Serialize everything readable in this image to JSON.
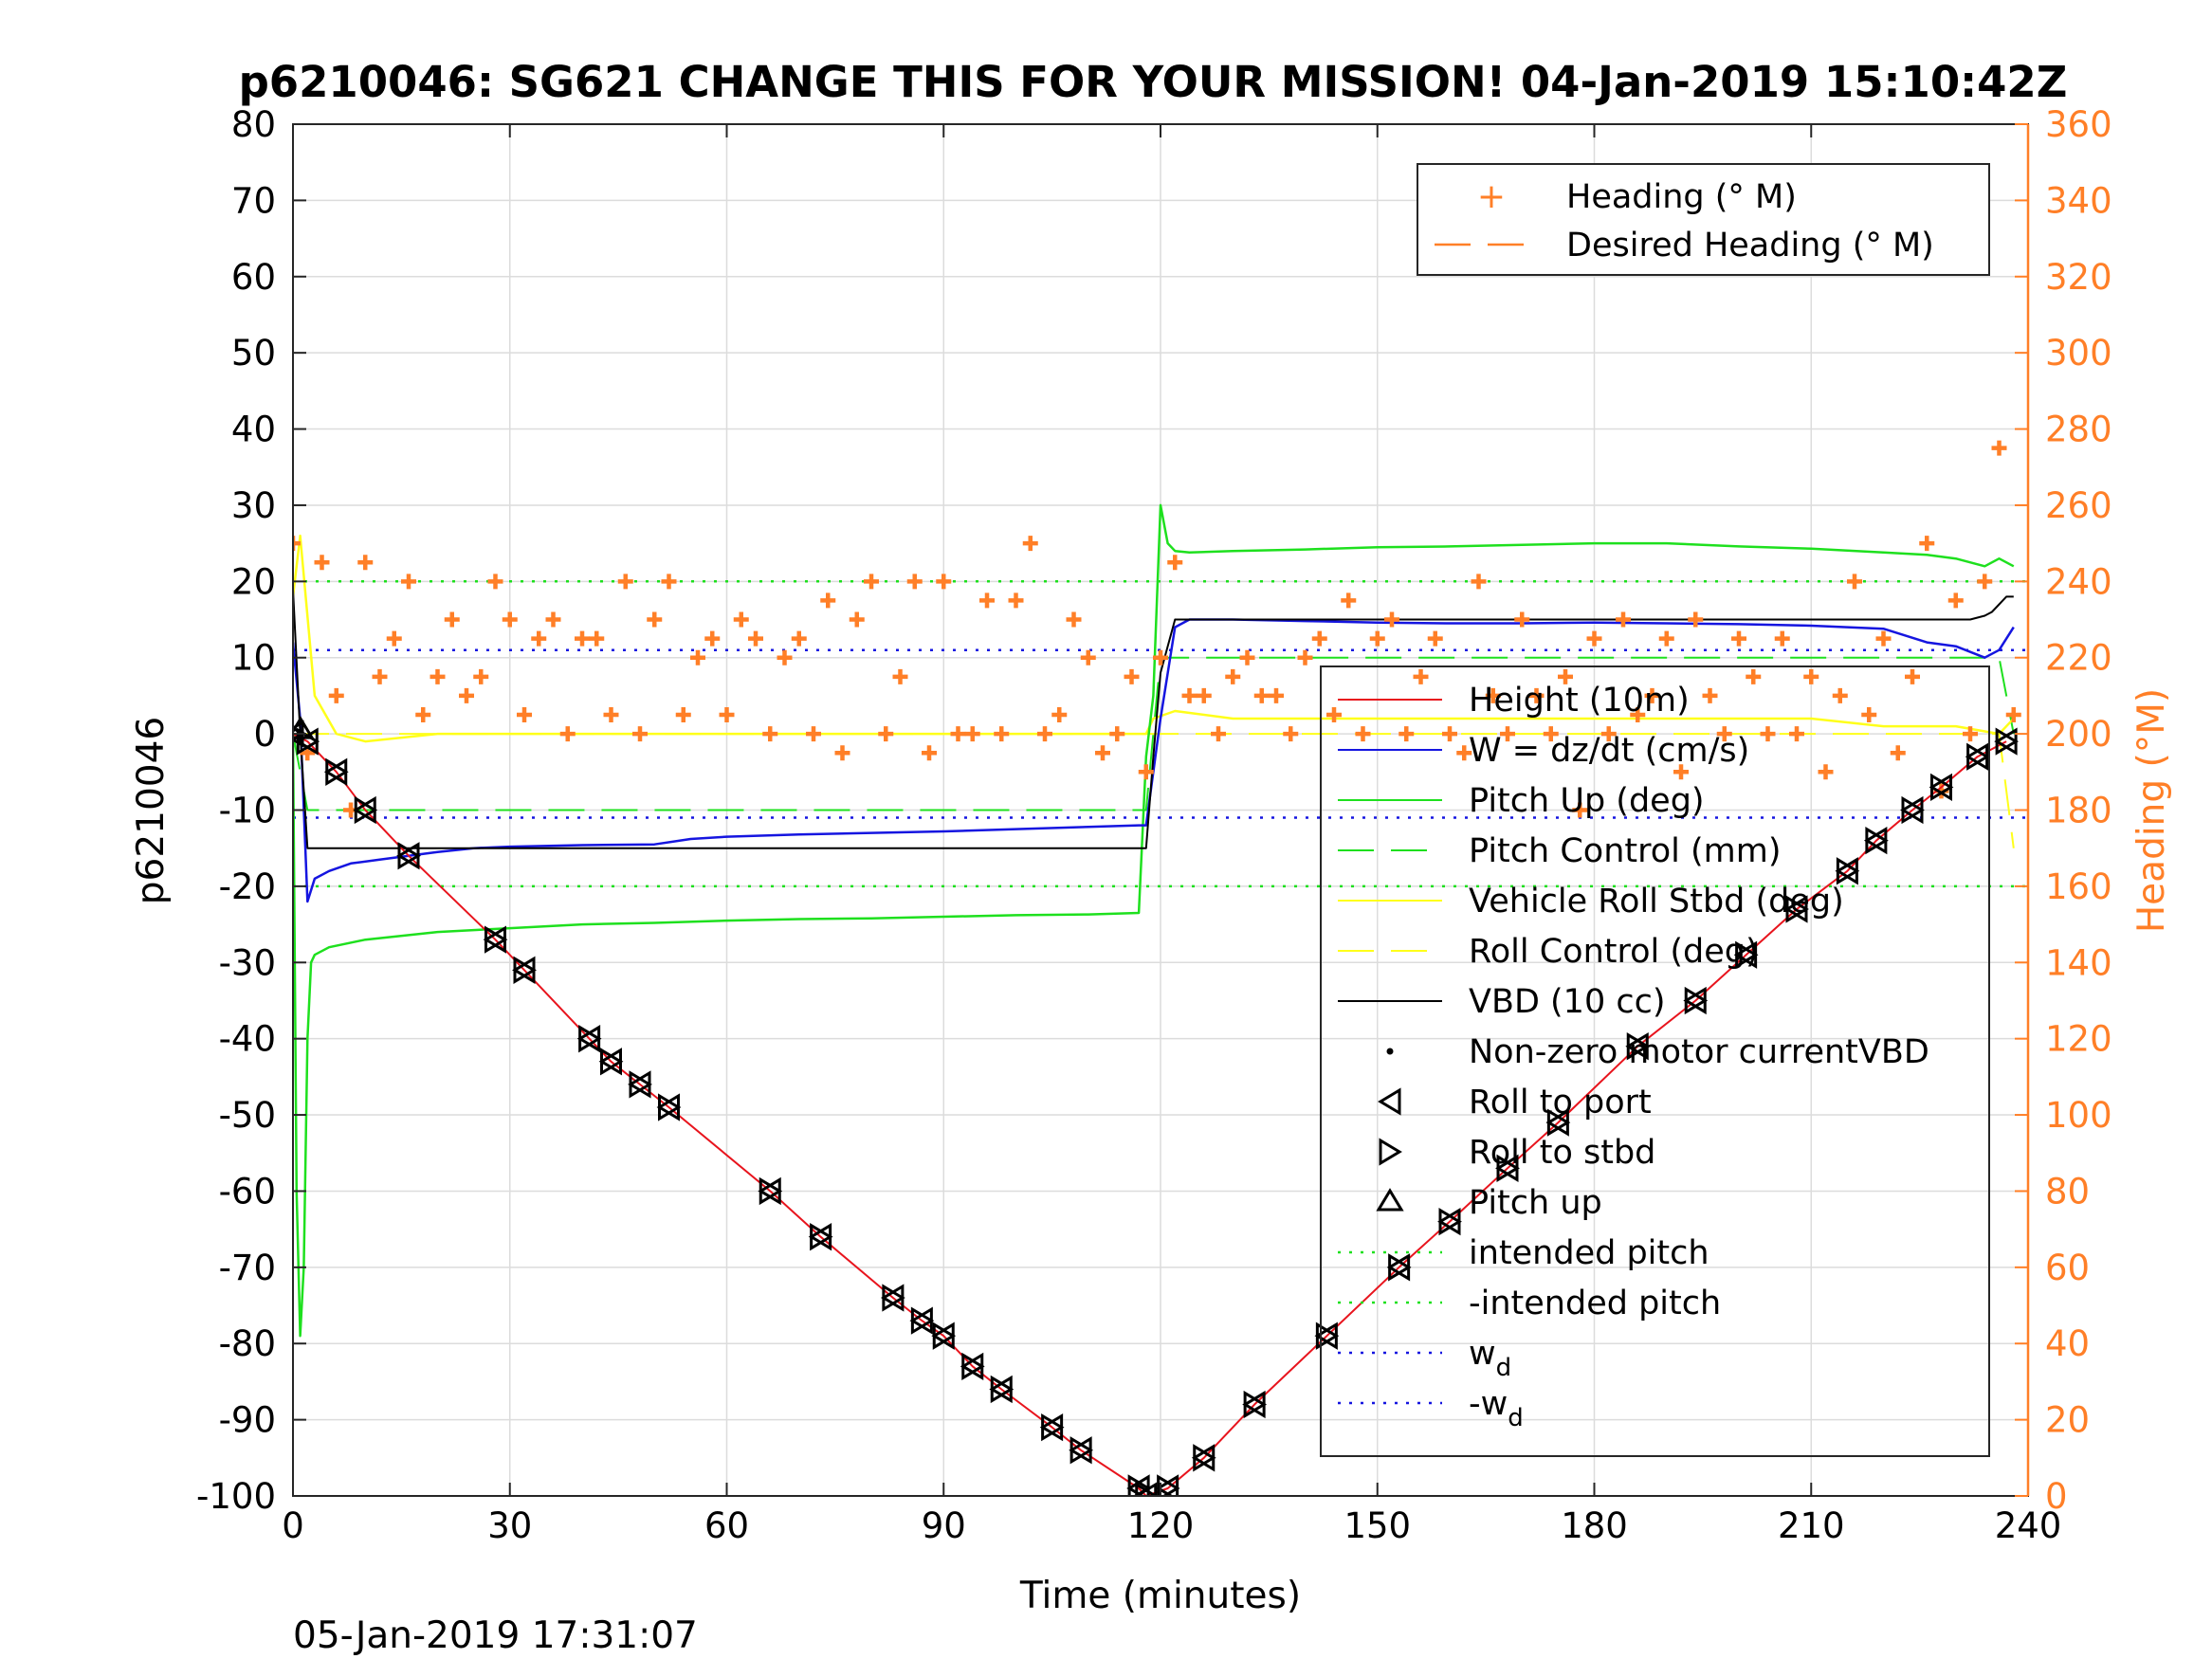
{
  "page": {
    "title": "p6210046: SG621 CHANGE THIS FOR YOUR MISSION! 04-Jan-2019 15:10:42Z",
    "footer_timestamp": "05-Jan-2019 17:31:07"
  },
  "colors": {
    "heading": "#ff7f27",
    "height": "#e8141d",
    "w": "#1515e0",
    "pitch_up": "#1ee01e",
    "roll": "#ffff1a",
    "vbd": "#000000",
    "grid": "#dcdcdc"
  },
  "chart_data": {
    "type": "line",
    "title": "p6210046: SG621 CHANGE THIS FOR YOUR MISSION! 04-Jan-2019 15:10:42Z",
    "xlabel": "Time (minutes)",
    "ylabel": "p6210046",
    "ylabel_right": "Heading (°M)",
    "xlim": [
      0,
      240
    ],
    "ylim": [
      -100,
      80
    ],
    "ylim_right": [
      0,
      360
    ],
    "xticks": [
      "0",
      "30",
      "60",
      "90",
      "120",
      "150",
      "180",
      "210",
      "240"
    ],
    "yticks": [
      "80",
      "70",
      "60",
      "50",
      "40",
      "30",
      "20",
      "10",
      "0",
      "-10",
      "-20",
      "-30",
      "-40",
      "-50",
      "-60",
      "-70",
      "-80",
      "-90",
      "-100"
    ],
    "yticks_right": [
      "360",
      "340",
      "320",
      "300",
      "280",
      "260",
      "240",
      "220",
      "200",
      "180",
      "160",
      "140",
      "120",
      "100",
      "80",
      "60",
      "40",
      "20",
      "0"
    ],
    "grid": true,
    "legend_top": {
      "placement": "top-right",
      "entries": [
        "Heading (° M)",
        "Desired Heading (° M)"
      ]
    },
    "legend_main": {
      "placement": "right",
      "entries": [
        "Height (10m)",
        "W = dz/dt (cm/s)",
        "Pitch Up (deg)",
        "Pitch Control (mm)",
        "Vehicle Roll Stbd (deg)",
        "Roll Control (deg)",
        "VBD (10 cc)",
        "Non-zero motor currentVBD",
        "Roll to port",
        "Roll to stbd",
        "Pitch up",
        "intended pitch",
        "-intended pitch"
      ],
      "wd_label": "w",
      "wd_sub": "d",
      "neg_wd_label": "-w",
      "neg_wd_sub": "d"
    },
    "series": [
      {
        "name": "Height (10m)",
        "axis": "left",
        "x": [
          0,
          2,
          6,
          10,
          16,
          28,
          32,
          41,
          44,
          48,
          52,
          66,
          73,
          83,
          87,
          90,
          94,
          98,
          105,
          109,
          117,
          118,
          121,
          126,
          133,
          143,
          153,
          160,
          168,
          175,
          186,
          194,
          201,
          208,
          215,
          219,
          224,
          228,
          233,
          237
        ],
        "values": [
          0,
          -1,
          -5,
          -10,
          -16,
          -27,
          -31,
          -40,
          -43,
          -46,
          -49,
          -60,
          -66,
          -74,
          -77,
          -79,
          -83,
          -86,
          -91,
          -94,
          -99,
          -100,
          -99,
          -95,
          -88,
          -79,
          -70,
          -64,
          -57,
          -51,
          -41,
          -35,
          -29,
          -23,
          -18,
          -14,
          -10,
          -7,
          -3,
          -1
        ]
      },
      {
        "name": "W = dz/dt (cm/s)",
        "axis": "left",
        "x": [
          0,
          1,
          2,
          3,
          5,
          8,
          12,
          16,
          20,
          25,
          30,
          40,
          50,
          55,
          60,
          70,
          80,
          90,
          100,
          110,
          117,
          118,
          120,
          122,
          124,
          130,
          140,
          150,
          160,
          170,
          180,
          190,
          200,
          210,
          220,
          226,
          230,
          234,
          236,
          238
        ],
        "values": [
          12,
          2,
          -22,
          -19,
          -18,
          -17,
          -16.5,
          -16,
          -15.5,
          -15,
          -14.8,
          -14.6,
          -14.5,
          -13.8,
          -13.5,
          -13.2,
          -13,
          -12.8,
          -12.5,
          -12.2,
          -12,
          -12,
          2,
          14,
          15,
          15,
          14.8,
          14.6,
          14.5,
          14.5,
          14.6,
          14.5,
          14.4,
          14.2,
          13.8,
          12,
          11.5,
          10,
          11,
          14
        ]
      },
      {
        "name": "Pitch Up (deg)",
        "axis": "left",
        "x": [
          0,
          0.5,
          1,
          1.5,
          2,
          2.5,
          3,
          5,
          10,
          20,
          30,
          40,
          50,
          60,
          70,
          80,
          90,
          100,
          110,
          117,
          118,
          119,
          120,
          121,
          122,
          124,
          130,
          140,
          150,
          160,
          170,
          180,
          190,
          200,
          210,
          220,
          226,
          230,
          234,
          236,
          238
        ],
        "values": [
          0,
          -60,
          -79,
          -70,
          -40,
          -30,
          -29,
          -28,
          -27,
          -26,
          -25.5,
          -25,
          -24.8,
          -24.5,
          -24.3,
          -24.2,
          -24,
          -23.8,
          -23.7,
          -23.5,
          -3,
          5,
          30,
          25,
          24,
          23.8,
          24,
          24.2,
          24.5,
          24.6,
          24.8,
          25,
          25,
          24.6,
          24.3,
          23.8,
          23.5,
          23,
          22,
          23,
          22
        ]
      },
      {
        "name": "Pitch Control (mm)",
        "axis": "left",
        "x": [
          0,
          2,
          118,
          120,
          236,
          238
        ],
        "values": [
          0,
          -10,
          -10,
          10,
          10,
          0
        ]
      },
      {
        "name": "Vehicle Roll Stbd (deg)",
        "axis": "left",
        "x": [
          0,
          1,
          3,
          6,
          10,
          20,
          30,
          40,
          50,
          60,
          70,
          80,
          90,
          100,
          110,
          118,
          119,
          122,
          130,
          140,
          150,
          160,
          170,
          180,
          190,
          200,
          210,
          220,
          230,
          236,
          238
        ],
        "values": [
          18,
          26,
          5,
          0,
          -1,
          0,
          0,
          0,
          0,
          0,
          0,
          0,
          0,
          0,
          0,
          0,
          2,
          3,
          2,
          2,
          2,
          2,
          2,
          2,
          2,
          2,
          2,
          1,
          1,
          0,
          2
        ]
      },
      {
        "name": "Roll Control (deg)",
        "axis": "left",
        "x": [
          0,
          2,
          118,
          120,
          236,
          238
        ],
        "values": [
          0,
          0,
          0,
          0,
          0,
          -15
        ]
      },
      {
        "name": "VBD (10 cc)",
        "axis": "left",
        "x": [
          0,
          1,
          2,
          50,
          118,
          119,
          120,
          122,
          232,
          234,
          235,
          236,
          237,
          238
        ],
        "values": [
          19,
          0,
          -15,
          -15,
          -15,
          -3,
          8,
          15,
          15,
          15.5,
          16,
          17,
          18,
          18
        ]
      },
      {
        "name": "intended pitch",
        "axis": "left",
        "x": [
          0,
          240
        ],
        "values": [
          20,
          20
        ]
      },
      {
        "name": "-intended pitch",
        "axis": "left",
        "x": [
          0,
          240
        ],
        "values": [
          -20,
          -20
        ]
      },
      {
        "name": "wd",
        "axis": "left",
        "x": [
          0,
          240
        ],
        "values": [
          11,
          11
        ]
      },
      {
        "name": "-wd",
        "axis": "left",
        "x": [
          0,
          240
        ],
        "values": [
          -11,
          -11
        ]
      },
      {
        "name": "Heading (° M)",
        "axis": "right",
        "x": [
          0,
          2,
          4,
          6,
          8,
          10,
          12,
          14,
          16,
          18,
          20,
          22,
          24,
          26,
          28,
          30,
          32,
          34,
          36,
          38,
          40,
          42,
          44,
          46,
          48,
          50,
          52,
          54,
          56,
          58,
          60,
          62,
          64,
          66,
          68,
          70,
          72,
          74,
          76,
          78,
          80,
          82,
          84,
          86,
          88,
          90,
          92,
          94,
          96,
          98,
          100,
          102,
          104,
          106,
          108,
          110,
          112,
          114,
          116,
          118,
          120,
          122,
          124,
          126,
          128,
          130,
          132,
          134,
          136,
          138,
          140,
          142,
          144,
          146,
          148,
          150,
          152,
          154,
          156,
          158,
          160,
          162,
          164,
          166,
          168,
          170,
          172,
          174,
          176,
          178,
          180,
          182,
          184,
          186,
          188,
          190,
          192,
          194,
          196,
          198,
          200,
          202,
          204,
          206,
          208,
          210,
          212,
          214,
          216,
          218,
          220,
          222,
          224,
          226,
          228,
          230,
          232,
          234,
          236,
          238
        ],
        "values": [
          250,
          195,
          245,
          210,
          180,
          245,
          215,
          225,
          240,
          205,
          215,
          230,
          210,
          215,
          240,
          230,
          205,
          225,
          230,
          200,
          225,
          225,
          205,
          240,
          200,
          230,
          240,
          205,
          220,
          225,
          205,
          230,
          225,
          200,
          220,
          225,
          200,
          235,
          195,
          230,
          240,
          200,
          215,
          240,
          195,
          240,
          200,
          200,
          235,
          200,
          235,
          250,
          200,
          205,
          230,
          220,
          195,
          200,
          215,
          190,
          220,
          245,
          210,
          210,
          200,
          215,
          220,
          210,
          210,
          200,
          220,
          225,
          205,
          235,
          200,
          225,
          230,
          200,
          215,
          225,
          200,
          195,
          240,
          210,
          200,
          230,
          210,
          200,
          215,
          180,
          225,
          200,
          230,
          205,
          210,
          225,
          190,
          230,
          210,
          200,
          225,
          215,
          200,
          225,
          200,
          215,
          190,
          210,
          240,
          205,
          225,
          195,
          215,
          250,
          185,
          235,
          200,
          240,
          275,
          205
        ]
      }
    ]
  }
}
